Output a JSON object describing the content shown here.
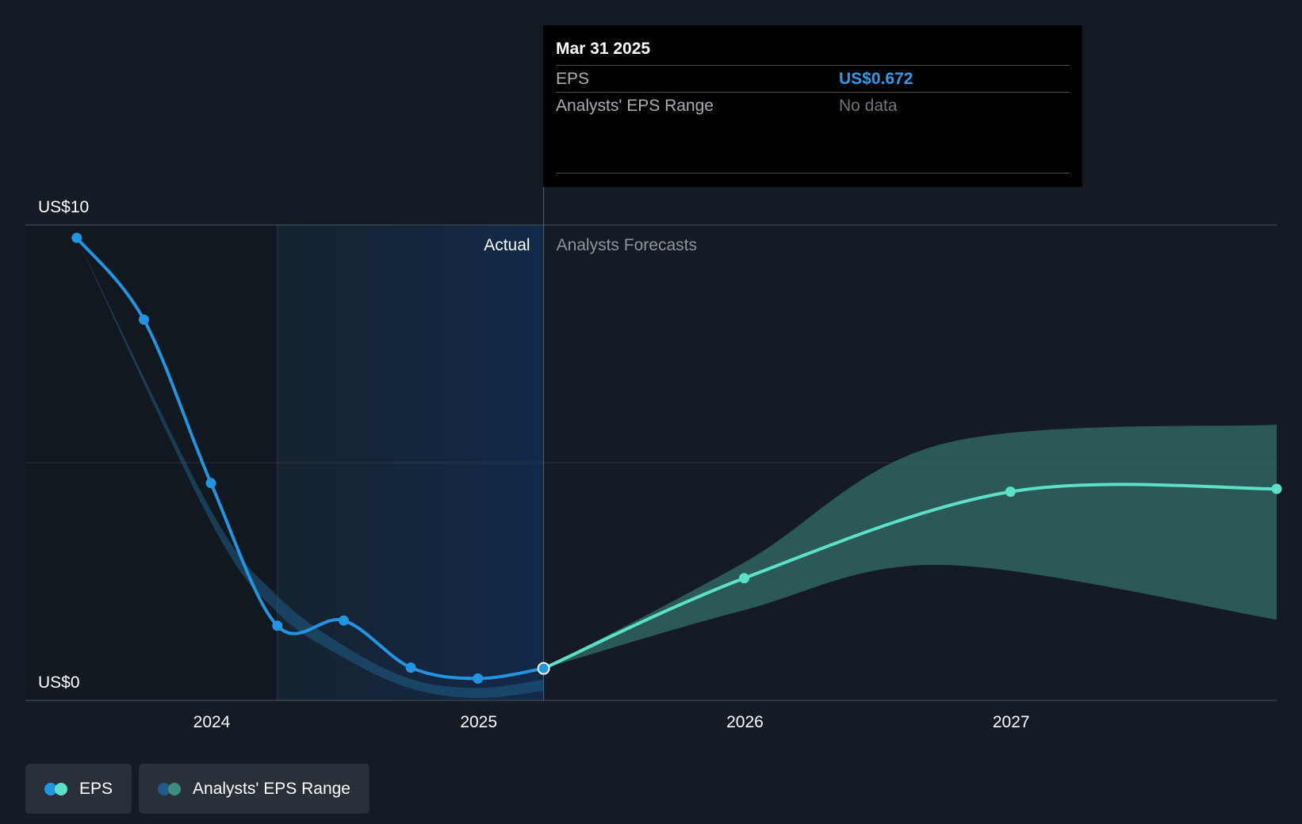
{
  "chart_data": {
    "type": "line",
    "y_axis": {
      "labels": [
        "US$10",
        "US$0"
      ],
      "ylim": [
        0,
        10
      ],
      "unit": "US$"
    },
    "x_axis": {
      "tick_labels": [
        "2024",
        "2025",
        "2026",
        "2027"
      ],
      "range": [
        "2023-06-30",
        "2027-12-31"
      ]
    },
    "regions": {
      "actual_label": "Actual",
      "forecast_label": "Analysts Forecasts",
      "divider_date": "2025-03-31"
    },
    "series": [
      {
        "name": "EPS",
        "kind": "actual",
        "color": "#2394df",
        "points": [
          {
            "x": "2023-06-30",
            "y": 9.73
          },
          {
            "x": "2023-09-30",
            "y": 8.01
          },
          {
            "x": "2023-12-31",
            "y": 4.57
          },
          {
            "x": "2024-03-31",
            "y": 1.57
          },
          {
            "x": "2024-06-30",
            "y": 1.68
          },
          {
            "x": "2024-09-30",
            "y": 0.69
          },
          {
            "x": "2024-12-31",
            "y": 0.46
          },
          {
            "x": "2025-03-31",
            "y": 0.672
          }
        ]
      },
      {
        "name": "EPS",
        "kind": "forecast",
        "color": "#5ee0c8",
        "points": [
          {
            "x": "2025-03-31",
            "y": 0.672
          },
          {
            "x": "2025-12-31",
            "y": 2.57
          },
          {
            "x": "2026-12-31",
            "y": 4.39
          },
          {
            "x": "2027-12-31",
            "y": 4.45
          }
        ]
      },
      {
        "name": "Analysts' EPS Range",
        "kind": "range",
        "color": "#3e8c82",
        "high": [
          {
            "x": "2025-03-31",
            "y": 0.672
          },
          {
            "x": "2025-12-31",
            "y": 2.9
          },
          {
            "x": "2026-09-30",
            "y": 5.4
          },
          {
            "x": "2027-12-31",
            "y": 5.8
          }
        ],
        "low": [
          {
            "x": "2025-03-31",
            "y": 0.672
          },
          {
            "x": "2025-12-31",
            "y": 1.9
          },
          {
            "x": "2026-09-30",
            "y": 2.85
          },
          {
            "x": "2027-12-31",
            "y": 1.7
          }
        ]
      }
    ],
    "grid": true,
    "legend_position": "bottom-left"
  },
  "tooltip": {
    "date": "Mar 31 2025",
    "eps_label": "EPS",
    "eps_value": "US$0.672",
    "range_label": "Analysts' EPS Range",
    "range_value": "No data"
  },
  "legend": {
    "items": [
      {
        "label": "EPS",
        "colors": [
          "#2394df",
          "#5ee0c8"
        ]
      },
      {
        "label": "Analysts' EPS Range",
        "colors": [
          "#1f5d86",
          "#3e8c82"
        ]
      }
    ]
  }
}
